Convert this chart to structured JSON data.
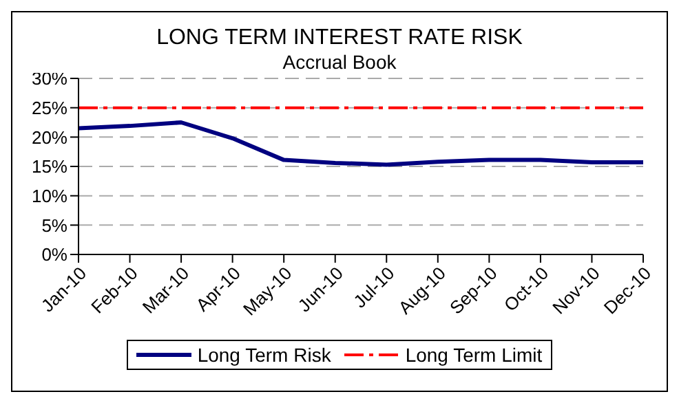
{
  "chart_data": {
    "type": "line",
    "title": "LONG TERM INTEREST RATE RISK",
    "subtitle": "Accrual Book",
    "categories": [
      "Jan-10",
      "Feb-10",
      "Mar-10",
      "Apr-10",
      "May-10",
      "Jun-10",
      "Jul-10",
      "Aug-10",
      "Sep-10",
      "Oct-10",
      "Nov-10",
      "Dec-10"
    ],
    "series": [
      {
        "name": "Long Term Risk",
        "color": "#000080",
        "line_style": "solid",
        "values": [
          0.215,
          0.219,
          0.225,
          0.198,
          0.161,
          0.156,
          0.153,
          0.158,
          0.161,
          0.161,
          0.157,
          0.157
        ]
      },
      {
        "name": "Long Term Limit",
        "color": "#ff0000",
        "line_style": "dashed",
        "values": [
          0.25,
          0.25,
          0.25,
          0.25,
          0.25,
          0.25,
          0.25,
          0.25,
          0.25,
          0.25,
          0.25,
          0.25
        ]
      }
    ],
    "ylim": [
      0,
      0.3
    ],
    "yticks": [
      {
        "value": 0,
        "label": "0%"
      },
      {
        "value": 0.05,
        "label": "5%"
      },
      {
        "value": 0.1,
        "label": "10%"
      },
      {
        "value": 0.15,
        "label": "15%"
      },
      {
        "value": 0.2,
        "label": "20%"
      },
      {
        "value": 0.25,
        "label": "25%"
      },
      {
        "value": 0.3,
        "label": "30%"
      }
    ],
    "grid": "y",
    "legend": "bottom",
    "marker": "none"
  }
}
